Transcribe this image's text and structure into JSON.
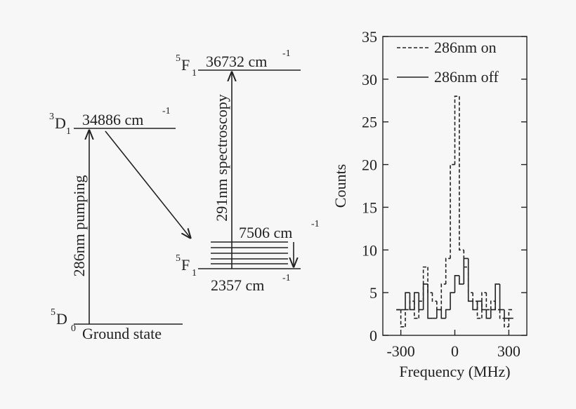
{
  "diagram": {
    "levels": [
      {
        "term": "5",
        "letter": "F",
        "j": "1",
        "energy": "36732 cm",
        "exp": "-1"
      },
      {
        "term": "3",
        "letter": "D",
        "j": "1",
        "energy": "34886 cm",
        "exp": "-1"
      },
      {
        "term": "5",
        "letter": "F",
        "j": "1",
        "energy": "2357 cm",
        "exp": "-1"
      },
      {
        "term": "5",
        "letter": "D",
        "j": "0",
        "energy": "Ground state"
      }
    ],
    "upper_energy": "7506 cm",
    "upper_exp": "-1",
    "pump_label": "286nm pumping",
    "probe_label": "291nm spectroscopy"
  },
  "chart_data": {
    "type": "histogram",
    "xlabel": "Frequency (MHz)",
    "ylabel": "Counts",
    "bins": [
      -325,
      -300,
      -275,
      -250,
      -225,
      -200,
      -175,
      -150,
      -125,
      -100,
      -75,
      -50,
      -25,
      0,
      25,
      50,
      75,
      100,
      125,
      150,
      175,
      200,
      225,
      250,
      275,
      300,
      325
    ],
    "series": [
      {
        "name": "286nm on",
        "color": "#222222",
        "dash": true,
        "values": [
          3,
          1,
          3,
          4,
          2,
          4,
          8,
          5,
          4,
          3,
          6,
          9,
          20,
          28,
          10,
          8,
          5,
          4,
          2,
          5,
          3,
          4,
          3,
          2,
          1,
          3
        ]
      },
      {
        "name": "286nm off",
        "color": "#222222",
        "dash": false,
        "values": [
          3,
          3,
          5,
          3,
          5,
          3,
          6,
          2,
          2,
          3,
          2,
          3,
          5,
          7,
          6,
          9,
          4,
          3,
          4,
          3,
          2,
          3,
          6,
          3,
          2,
          2
        ]
      }
    ],
    "xlim": [
      -400,
      400
    ],
    "xticks": [
      -300,
      0,
      300
    ],
    "ylim": [
      0,
      35
    ],
    "yticks": [
      0,
      5,
      10,
      15,
      20,
      25,
      30,
      35
    ],
    "legend": "upper-right"
  }
}
